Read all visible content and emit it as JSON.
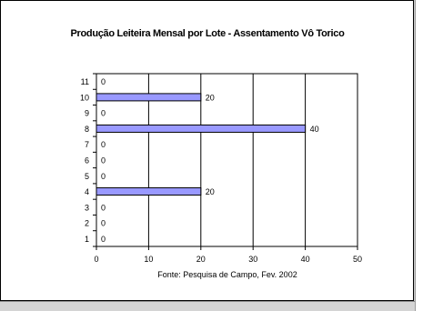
{
  "chart_data": {
    "type": "bar",
    "orientation": "horizontal",
    "title": "Produção Leiteira Mensal por Lote - Assentamento Vô Torico",
    "source": "Fonte: Pesquisa de Campo, Fev. 2002",
    "categories": [
      "1",
      "2",
      "3",
      "4",
      "5",
      "6",
      "7",
      "8",
      "9",
      "10",
      "11"
    ],
    "values": [
      0,
      0,
      0,
      20,
      0,
      0,
      0,
      40,
      0,
      20,
      0
    ],
    "xlim": [
      0,
      50
    ],
    "xticks": [
      "0",
      "10",
      "20",
      "30",
      "40",
      "50"
    ],
    "grid": "vertical",
    "legend": "none",
    "bar_color": "#9999ff",
    "bar_outline": "#000000"
  }
}
